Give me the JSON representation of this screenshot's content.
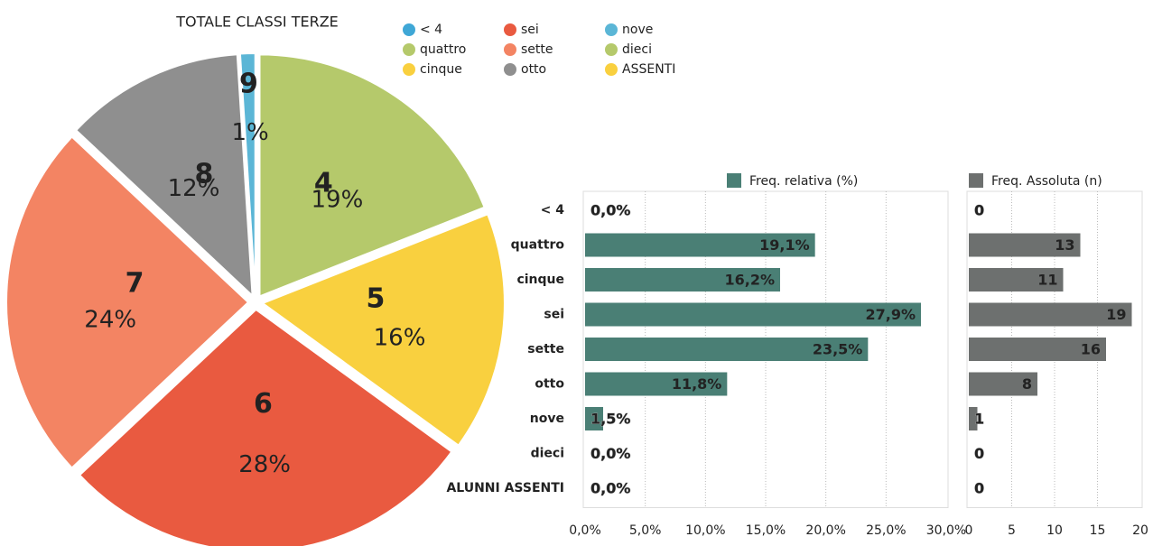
{
  "chart_data": [
    {
      "type": "pie",
      "title": "TOTALE CLASSI TERZE",
      "categories": [
        "< 4",
        "quattro",
        "cinque",
        "sei",
        "sette",
        "otto",
        "nove",
        "dieci",
        "ASSENTI"
      ],
      "values": [
        0,
        19,
        16,
        28,
        24,
        12,
        1,
        0,
        0
      ],
      "value_labels": [
        null,
        "19%",
        "16%",
        "28%",
        "24%",
        "12%",
        "1%",
        null,
        null
      ],
      "slice_labels": [
        null,
        "4",
        "5",
        "6",
        "7",
        "8",
        "9",
        null,
        null
      ],
      "colors": [
        "#3fa7d6",
        "#b5c96b",
        "#f9d03f",
        "#e95a40",
        "#f38463",
        "#8f8f8f",
        "#5bb6d6",
        "#b5c96b",
        "#f9d03f"
      ]
    },
    {
      "type": "barh",
      "categories": [
        "< 4",
        "quattro",
        "cinque",
        "sei",
        "sette",
        "otto",
        "nove",
        "dieci",
        "ALUNNI ASSENTI"
      ],
      "series": [
        {
          "name": "Freq. relativa (%)",
          "color": "#4a7f75",
          "values": [
            0,
            19.1,
            16.2,
            27.9,
            23.5,
            11.8,
            1.5,
            0,
            0
          ],
          "value_labels": [
            "0,0%",
            "19,1%",
            "16,2%",
            "27,9%",
            "23,5%",
            "11,8%",
            "1,5%",
            "0,0%",
            "0,0%"
          ]
        }
      ],
      "xlim": [
        0,
        30
      ],
      "xticks": [
        {
          "value": 0,
          "label": "0,0%"
        },
        {
          "value": 5,
          "label": "5,0%"
        },
        {
          "value": 10,
          "label": "10,0%"
        },
        {
          "value": 15,
          "label": "15,0%"
        },
        {
          "value": 20,
          "label": "20,0%"
        },
        {
          "value": 25,
          "label": "25,0%"
        },
        {
          "value": 30,
          "label": "30,0%"
        }
      ],
      "grid": true
    },
    {
      "type": "barh",
      "series": [
        {
          "name": "Freq. Assoluta (n)",
          "color": "#6d706f",
          "values": [
            0,
            13,
            11,
            19,
            16,
            8,
            1,
            0,
            0
          ]
        }
      ],
      "xlim": [
        0,
        20
      ],
      "xticks": [
        0,
        5,
        10,
        15,
        20
      ],
      "grid": true
    }
  ]
}
